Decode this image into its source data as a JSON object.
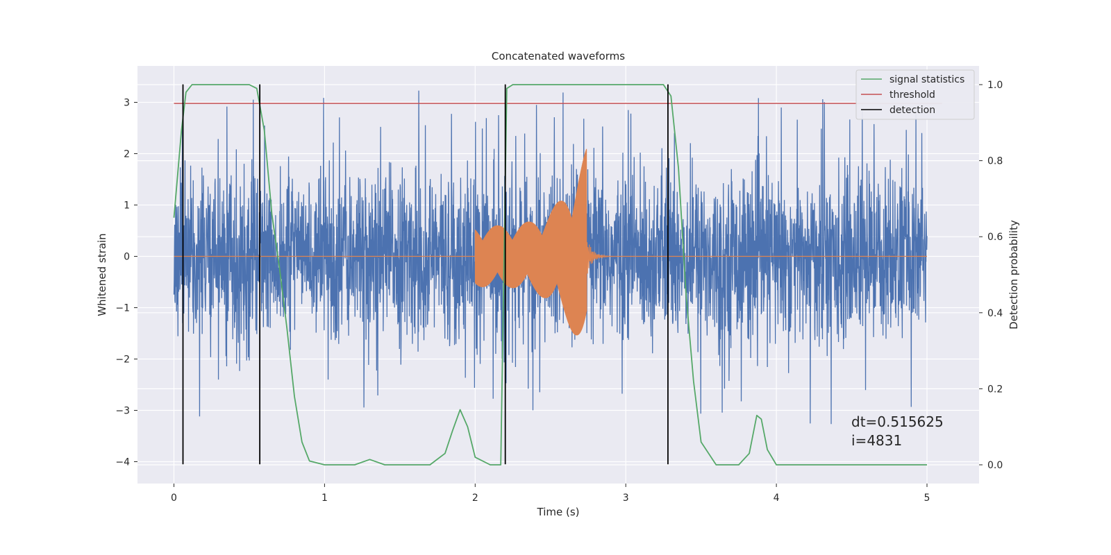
{
  "chart_data": {
    "type": "line",
    "title": "Concatenated waveforms",
    "xlabel": "Time (s)",
    "ylabel": "Whitened strain",
    "ylabel_right": "Detection probability",
    "xlim": [
      -0.25,
      5.35
    ],
    "ylim": [
      -4.4,
      3.5
    ],
    "ylim_right": [
      -0.045,
      1.03
    ],
    "x_ticks": [
      0,
      1,
      2,
      3,
      4,
      5
    ],
    "x_tick_labels": [
      "0",
      "1",
      "2",
      "3",
      "4",
      "5"
    ],
    "y_ticks": [
      -4,
      -3,
      -2,
      -1,
      0,
      1,
      2,
      3
    ],
    "y_tick_labels": [
      "−4",
      "−3",
      "−2",
      "−1",
      "0",
      "1",
      "2",
      "3"
    ],
    "y_right_ticks": [
      0.0,
      0.2,
      0.4,
      0.6,
      0.8,
      1.0
    ],
    "y_right_tick_labels": [
      "0.0",
      "0.2",
      "0.4",
      "0.6",
      "0.8",
      "1.0"
    ],
    "grid": true,
    "legend_position": "top-right",
    "legend": [
      {
        "label": "signal statistics",
        "color": "#55a868"
      },
      {
        "label": "threshold",
        "color": "#c44e52"
      },
      {
        "label": "detection",
        "color": "#000000"
      }
    ],
    "series": [
      {
        "kind": "noise",
        "color": "#4c72b0",
        "x_range": [
          0,
          5
        ],
        "typical_amplitude": 1.3,
        "peak_amplitude": 3.3
      },
      {
        "kind": "injected waveform",
        "color": "#dd8452",
        "x_range": [
          2.0,
          2.74
        ],
        "amplitude_start": 0.6,
        "amplitude_end": 2.1
      },
      {
        "kind": "signal statistics",
        "axis": "right",
        "color": "#55a868",
        "x": [
          0,
          0.05,
          0.08,
          0.12,
          0.2,
          0.5,
          0.55,
          0.6,
          0.65,
          0.7,
          0.75,
          0.8,
          0.85,
          0.9,
          1.0,
          1.2,
          1.3,
          1.4,
          1.7,
          1.8,
          1.85,
          1.9,
          1.95,
          2.0,
          2.1,
          2.17,
          2.19,
          2.21,
          2.25,
          3.0,
          3.25,
          3.3,
          3.35,
          3.4,
          3.45,
          3.5,
          3.6,
          3.75,
          3.82,
          3.87,
          3.9,
          3.94,
          4.0,
          4.5,
          5.0
        ],
        "y": [
          0.65,
          0.88,
          0.98,
          1.0,
          1.0,
          1.0,
          0.99,
          0.88,
          0.66,
          0.52,
          0.36,
          0.18,
          0.06,
          0.01,
          0.0,
          0.0,
          0.014,
          0.0,
          0.0,
          0.03,
          0.09,
          0.145,
          0.1,
          0.02,
          0.0,
          0.0,
          0.5,
          0.99,
          1.0,
          1.0,
          1.0,
          0.97,
          0.78,
          0.45,
          0.22,
          0.06,
          0.0,
          0.0,
          0.03,
          0.13,
          0.12,
          0.04,
          0.0,
          0.0,
          0.0
        ]
      },
      {
        "kind": "threshold",
        "color": "#c44e52",
        "y": 2.98,
        "x_range": [
          0,
          5.1
        ]
      },
      {
        "kind": "detection",
        "color": "#000000",
        "x": [
          0.06,
          0.57,
          2.2,
          3.28
        ]
      }
    ],
    "annotation": "dt=0.515625\n i=4831"
  }
}
